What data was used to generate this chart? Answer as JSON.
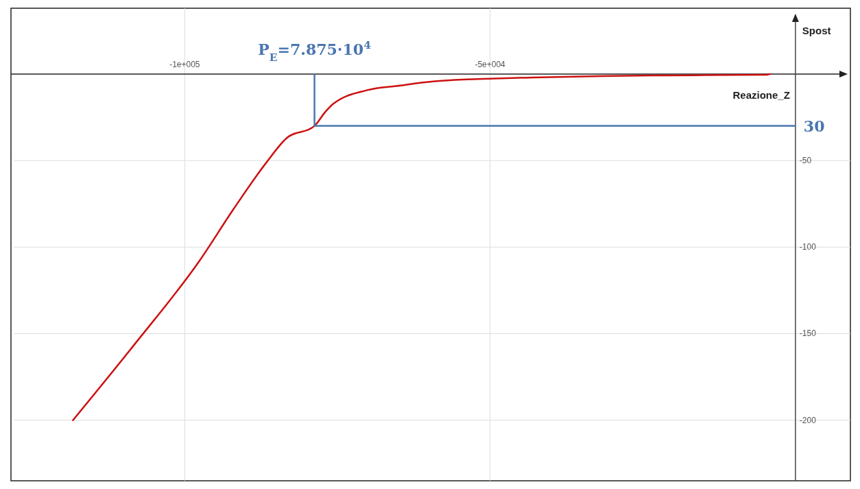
{
  "chart_data": {
    "type": "line",
    "xlabel": "Reazione_Z",
    "ylabel": "Spost",
    "xlim": [
      -128000,
      9000
    ],
    "ylim": [
      -235,
      38
    ],
    "xticks": [
      {
        "value": -100000,
        "label": "-1e+005"
      },
      {
        "value": -50000,
        "label": "-5e+004"
      }
    ],
    "yticks": [
      -50,
      -100,
      -150,
      -200
    ],
    "grid": true,
    "marker": "none",
    "series": [
      {
        "color": "#cc1111",
        "x": [
          -118300,
          -108400,
          -97500,
          -92000,
          -86600,
          -83300,
          -78750,
          -77000,
          -75700,
          -70200,
          -64700,
          -60400,
          -53800,
          -50000,
          -42900,
          -32000,
          -21100,
          -4700,
          -4100
        ],
        "values": [
          -200,
          -157,
          -107.5,
          -78,
          -51,
          -37,
          -30,
          -22,
          -17.3,
          -9.4,
          -6.7,
          -4.7,
          -3.1,
          -2.7,
          -2,
          -1.2,
          -0.8,
          -0.4,
          0
        ]
      },
      {
        "color": "#4a76b0",
        "x": [
          -78750,
          -78750,
          0
        ],
        "values": [
          0,
          -30,
          -30
        ]
      }
    ],
    "annotations": [
      {
        "text": "P$_{E}$=7.875·10$^{4}$",
        "x": -78750,
        "y": 0
      },
      {
        "text": "30",
        "x": 0,
        "y": -30
      }
    ]
  }
}
